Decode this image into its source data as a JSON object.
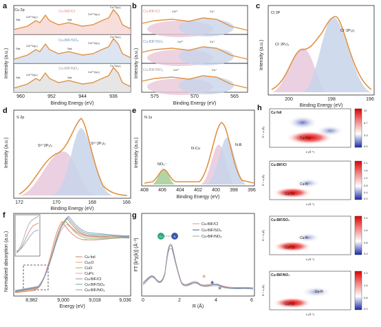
{
  "panels": {
    "a": {
      "label": "a",
      "ylabel": "Intensity (a.u.)",
      "xlabel": "Binding Energy (eV)",
      "ticks": [
        "960",
        "952",
        "944",
        "936"
      ],
      "rows": [
        {
          "name": "Cu-BIF/Cl",
          "color": "#e8a3a0",
          "region": "Cu 2p",
          "labels": {
            "sat1": "Sat.",
            "cu2p12": "Cu²⁺2p₁/₂",
            "sat2": "Sat.",
            "cu2p32": "Cu²⁺2p₃/₂",
            "cu2p32b": "Cu⁺2p₃/₂"
          }
        },
        {
          "name": "Cu-BIF/SO₄",
          "color": "#8fa8c8",
          "labels": {
            "sat1": "Sat.",
            "cu2p12": "Cu²⁺2p₁/₂",
            "sat2": "Sat.",
            "cu2p32": "Cu²⁺2p₃/₂",
            "cu2p32b": "Cu⁺2p₃/₂"
          }
        },
        {
          "name": "Cu-BIF/NO₃",
          "color": "#b0b0b0",
          "labels": {
            "sat1": "Sat.",
            "cu2p12": "Cu²⁺2p₁/₂",
            "sat2": "Sat.",
            "cu2p32": "Cu²⁺2p₃/₂",
            "cu2p32b": "Cu⁺2p₃/₂"
          }
        }
      ]
    },
    "b": {
      "label": "b",
      "ylabel": "Intensity (a.u.)",
      "xlabel": "Binding Energy (eV)",
      "ticks": [
        "575",
        "570",
        "565"
      ],
      "rows": [
        {
          "name": "Cu-BIF/Cl",
          "color": "#e8a3a0",
          "p1": "Cu²⁺",
          "p2": "Cu⁺"
        },
        {
          "name": "Cu-BIF/SO₄",
          "color": "#8fa8c8",
          "p1": "Cu²⁺",
          "p2": "Cu⁺"
        },
        {
          "name": "Cu-BIF/NO₃",
          "color": "#b0b0b0",
          "p1": "Cu²⁺",
          "p2": "Cu⁺"
        }
      ]
    },
    "c": {
      "label": "c",
      "region": "Cl 2P",
      "ylabel": "Intensity (a.u.)",
      "xlabel": "Binding Energy (eV)",
      "ticks": [
        "200",
        "198",
        "196"
      ],
      "peak1": "Cl⁻2P₁/₂",
      "peak2": "Cl⁻2P₃/₂"
    },
    "d": {
      "label": "d",
      "region": "S 2p",
      "ylabel": "Intensity (a.u.)",
      "xlabel": "Binding Energy (eV)",
      "ticks": [
        "172",
        "170",
        "168",
        "166"
      ],
      "peak1": "S⁶⁺2P₁/₂",
      "peak2": "S⁶⁺2P₃/₂"
    },
    "e": {
      "label": "e",
      "region": "N 1s",
      "ylabel": "Intensity (a.u.)",
      "xlabel": "Binding Energy (eV)",
      "ticks": [
        "408",
        "406",
        "404",
        "402",
        "400",
        "398",
        "396"
      ],
      "peak1": "NO₃⁻",
      "peak2": "N-Cu",
      "peak3": "N-B"
    },
    "f": {
      "label": "f",
      "ylabel": "Normalized absorption (a.u.)",
      "xlabel": "Energy (eV)",
      "ticks": [
        "8,982",
        "9,000",
        "9,018",
        "9,036"
      ],
      "legend": [
        {
          "name": "Cu foil",
          "color": "#d87a6a"
        },
        {
          "name": "Cu₂O",
          "color": "#e0a860"
        },
        {
          "name": "CuO",
          "color": "#9bb070"
        },
        {
          "name": "CuPc",
          "color": "#d8a0b8"
        },
        {
          "name": "Cu-BIF/Cl",
          "color": "#b08870"
        },
        {
          "name": "Cu-BIF/SO₄",
          "color": "#70a0a8"
        },
        {
          "name": "Cu-BIF/NO₃",
          "color": "#8aa0c0"
        }
      ]
    },
    "g": {
      "label": "g",
      "ylabel": "FT [k²χ(k)] (Å⁻³)",
      "xlabel": "R (Å)",
      "ticks": [
        "0",
        "2",
        "4",
        "6"
      ],
      "legend": [
        {
          "name": "Cu-BIF/Cl",
          "color": "#e8a3a0"
        },
        {
          "name": "Cu-BIF/SO₄",
          "color": "#5f7fa8"
        },
        {
          "name": "Cu-BIF/NO₃",
          "color": "#b0b0b0"
        }
      ],
      "atom1": "Cu",
      "atom2": "N"
    },
    "h": {
      "label": "h",
      "ylabel": "R + a (Å)",
      "xlabel": "k (Å⁻¹)",
      "maps": [
        {
          "name": "Cu foil",
          "peak": "Cu-Cu",
          "cbar": [
            "10",
            "6.7",
            "3.3",
            "0.0"
          ]
        },
        {
          "name": "Cu-BIF/Cl",
          "peak1": "Cu-Cu",
          "peak2": "Cu-N",
          "cbar": [
            "2.1",
            "1.6",
            "1.2",
            "0.8",
            "0.4",
            "0.0"
          ]
        },
        {
          "name": "Cu-BIF/SO₄",
          "peak1": "Cu-Cu",
          "peak2": "Cu-N",
          "cbar": [
            "2.4",
            "1.6",
            "0.8",
            "0.0"
          ]
        },
        {
          "name": "Cu-BIF/NO₃",
          "peak1": "Cu-Cu",
          "peak2": "Cu-N",
          "cbar": [
            "2.2",
            "1.5",
            "0.8",
            "0.0"
          ]
        }
      ]
    }
  }
}
